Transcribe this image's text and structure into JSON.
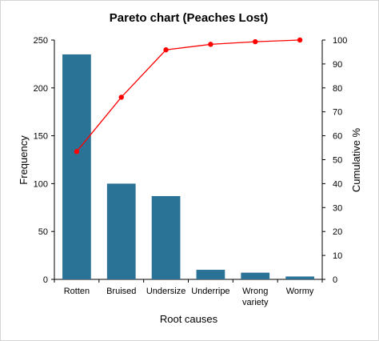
{
  "chart_data": {
    "type": "bar",
    "title": "Pareto chart (Peaches Lost)",
    "xlabel": "Root causes",
    "ylabel": "Frequency",
    "y2label": "Cumulative %",
    "categories": [
      "Rotten",
      "Bruised",
      "Undersize",
      "Underripe",
      "Wrong variety",
      "Wormy"
    ],
    "category_lines": [
      [
        "Rotten"
      ],
      [
        "Bruised"
      ],
      [
        "Undersize"
      ],
      [
        "Underripe"
      ],
      [
        "Wrong",
        "variety"
      ],
      [
        "Wormy"
      ]
    ],
    "series": [
      {
        "values": [
          235,
          100,
          87,
          10,
          7,
          3
        ],
        "type": "bar",
        "axis": "left"
      },
      {
        "values": [
          53.4,
          76.1,
          95.9,
          98.2,
          99.3,
          100
        ],
        "type": "line",
        "axis": "right"
      }
    ],
    "ylim": [
      0,
      250
    ],
    "y_ticks": [
      0,
      50,
      100,
      150,
      200,
      250
    ],
    "y2lim": [
      0,
      100
    ],
    "y2_ticks": [
      0,
      10,
      20,
      30,
      40,
      50,
      60,
      70,
      80,
      90,
      100
    ],
    "grid": false,
    "legend": "none",
    "colors": {
      "bar": "#2a7396",
      "line": "#ff0000",
      "marker": "#ff0000"
    }
  }
}
